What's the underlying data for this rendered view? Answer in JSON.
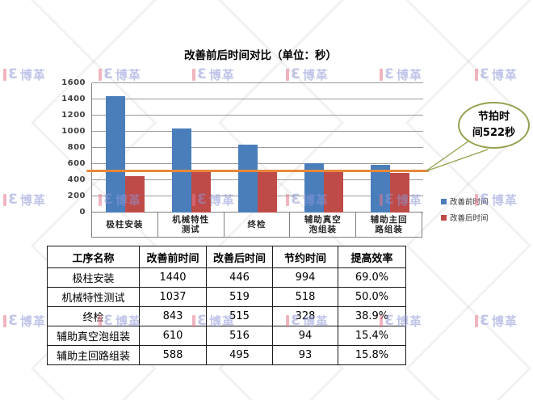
{
  "title": "改善前后时间对比（单位：秒）",
  "watermark": {
    "brand_glyph": "3",
    "brand_text": "博革"
  },
  "chart_data": {
    "type": "bar",
    "title": "改善前后时间对比（单位：秒）",
    "categories": [
      "极柱安装",
      "机械特性测试",
      "终检",
      "辅助真空泡组装",
      "辅助主回路组装"
    ],
    "categories_wrapped": [
      [
        "极柱安装"
      ],
      [
        "机械特性",
        "测试"
      ],
      [
        "终检"
      ],
      [
        "辅助真空",
        "泡组装"
      ],
      [
        "辅助主回",
        "路组装"
      ]
    ],
    "series": [
      {
        "name": "改善前时间",
        "color": "#4a7ebb",
        "values": [
          1440,
          1037,
          843,
          610,
          588
        ]
      },
      {
        "name": "改善后时间",
        "color": "#be4b48",
        "values": [
          446,
          519,
          515,
          516,
          495
        ]
      }
    ],
    "takt_line": {
      "value": 522,
      "color": "#e8873b",
      "label": "节拍时间522秒"
    },
    "xlabel": "",
    "ylabel": "",
    "ylim": [
      0,
      1600
    ],
    "ytick_step": 200,
    "grid": true,
    "legend_position": "right"
  },
  "callout": {
    "line1": "节拍时",
    "line2": "间522秒"
  },
  "table": {
    "headers": [
      "工序名称",
      "改善前时间",
      "改善后时间",
      "节约时间",
      "提高效率"
    ],
    "rows": [
      [
        "极柱安装",
        "1440",
        "446",
        "994",
        "69.0%"
      ],
      [
        "机械特性测试",
        "1037",
        "519",
        "518",
        "50.0%"
      ],
      [
        "终检",
        "843",
        "515",
        "328",
        "38.9%"
      ],
      [
        "辅助真空泡组装",
        "610",
        "516",
        "94",
        "15.4%"
      ],
      [
        "辅助主回路组装",
        "588",
        "495",
        "93",
        "15.8%"
      ]
    ]
  }
}
